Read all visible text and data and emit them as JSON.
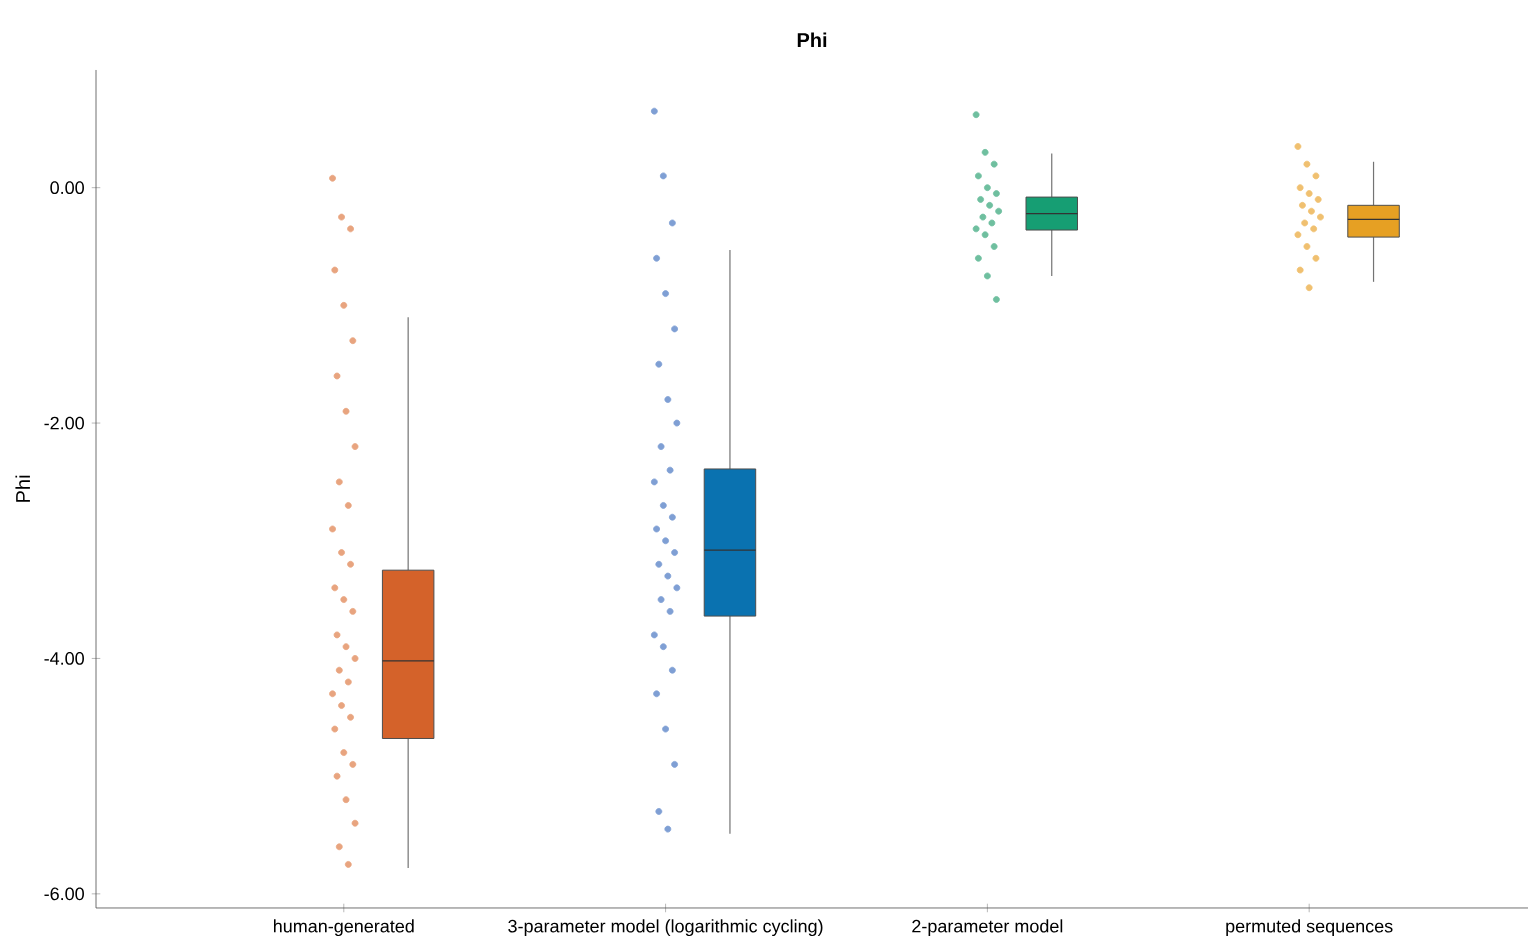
{
  "chart_data": {
    "type": "box",
    "title": "Phi",
    "ylabel": "Phi",
    "categories": [
      "human-generated",
      "3-parameter model (logarithmic cycling)",
      "2-parameter model",
      "permuted sequences"
    ],
    "colors": [
      "#d4622a",
      "#0a72b0",
      "#169e73",
      "#e6a023"
    ],
    "boxes": [
      {
        "low": -5.78,
        "q1": -4.68,
        "median": -4.02,
        "q3": -3.25,
        "high": -1.1
      },
      {
        "low": -5.49,
        "q1": -3.64,
        "median": -3.08,
        "q3": -2.39,
        "high": -0.53
      },
      {
        "low": -0.75,
        "q1": -0.36,
        "median": -0.22,
        "q3": -0.08,
        "high": 0.29
      },
      {
        "low": -0.8,
        "q1": -0.42,
        "median": -0.27,
        "q3": -0.15,
        "high": 0.22
      }
    ],
    "series": [
      {
        "type": "scatter",
        "color": "#e8a47f",
        "x": [
          "human-generated",
          "human-generated",
          "human-generated",
          "human-generated",
          "human-generated",
          "human-generated",
          "human-generated",
          "human-generated",
          "human-generated",
          "human-generated",
          "human-generated",
          "human-generated",
          "human-generated",
          "human-generated",
          "human-generated",
          "human-generated",
          "human-generated",
          "human-generated",
          "human-generated",
          "human-generated",
          "human-generated",
          "human-generated",
          "human-generated",
          "human-generated",
          "human-generated",
          "human-generated",
          "human-generated",
          "human-generated",
          "human-generated",
          "human-generated",
          "human-generated",
          "human-generated",
          "human-generated"
        ],
        "values": [
          0.08,
          -0.25,
          -0.35,
          -0.7,
          -1.0,
          -1.3,
          -1.6,
          -1.9,
          -2.2,
          -2.5,
          -2.7,
          -2.9,
          -3.1,
          -3.2,
          -3.4,
          -3.5,
          -3.6,
          -3.8,
          -3.9,
          -4.0,
          -4.1,
          -4.2,
          -4.3,
          -4.4,
          -4.5,
          -4.6,
          -4.8,
          -4.9,
          -5.0,
          -5.2,
          -5.4,
          -5.6,
          -5.75
        ]
      },
      {
        "type": "scatter",
        "color": "#7f9fd4",
        "x": [
          "3-parameter model (logarithmic cycling)",
          "3-parameter model (logarithmic cycling)",
          "3-parameter model (logarithmic cycling)",
          "3-parameter model (logarithmic cycling)",
          "3-parameter model (logarithmic cycling)",
          "3-parameter model (logarithmic cycling)",
          "3-parameter model (logarithmic cycling)",
          "3-parameter model (logarithmic cycling)",
          "3-parameter model (logarithmic cycling)",
          "3-parameter model (logarithmic cycling)",
          "3-parameter model (logarithmic cycling)",
          "3-parameter model (logarithmic cycling)",
          "3-parameter model (logarithmic cycling)",
          "3-parameter model (logarithmic cycling)",
          "3-parameter model (logarithmic cycling)",
          "3-parameter model (logarithmic cycling)",
          "3-parameter model (logarithmic cycling)",
          "3-parameter model (logarithmic cycling)",
          "3-parameter model (logarithmic cycling)",
          "3-parameter model (logarithmic cycling)",
          "3-parameter model (logarithmic cycling)",
          "3-parameter model (logarithmic cycling)",
          "3-parameter model (logarithmic cycling)",
          "3-parameter model (logarithmic cycling)",
          "3-parameter model (logarithmic cycling)",
          "3-parameter model (logarithmic cycling)",
          "3-parameter model (logarithmic cycling)",
          "3-parameter model (logarithmic cycling)",
          "3-parameter model (logarithmic cycling)",
          "3-parameter model (logarithmic cycling)"
        ],
        "values": [
          0.65,
          0.1,
          -0.3,
          -0.6,
          -0.9,
          -1.2,
          -1.5,
          -1.8,
          -2.0,
          -2.2,
          -2.4,
          -2.5,
          -2.7,
          -2.8,
          -2.9,
          -3.0,
          -3.1,
          -3.2,
          -3.3,
          -3.4,
          -3.5,
          -3.6,
          -3.8,
          -3.9,
          -4.1,
          -4.3,
          -4.6,
          -4.9,
          -5.3,
          -5.45
        ]
      },
      {
        "type": "scatter",
        "color": "#6fbf9f",
        "x": [
          "2-parameter model",
          "2-parameter model",
          "2-parameter model",
          "2-parameter model",
          "2-parameter model",
          "2-parameter model",
          "2-parameter model",
          "2-parameter model",
          "2-parameter model",
          "2-parameter model",
          "2-parameter model",
          "2-parameter model",
          "2-parameter model",
          "2-parameter model",
          "2-parameter model",
          "2-parameter model",
          "2-parameter model"
        ],
        "values": [
          0.62,
          0.3,
          0.2,
          0.1,
          0.0,
          -0.05,
          -0.1,
          -0.15,
          -0.2,
          -0.25,
          -0.3,
          -0.35,
          -0.4,
          -0.5,
          -0.6,
          -0.75,
          -0.95
        ]
      },
      {
        "type": "scatter",
        "color": "#f0c070",
        "x": [
          "permuted sequences",
          "permuted sequences",
          "permuted sequences",
          "permuted sequences",
          "permuted sequences",
          "permuted sequences",
          "permuted sequences",
          "permuted sequences",
          "permuted sequences",
          "permuted sequences",
          "permuted sequences",
          "permuted sequences",
          "permuted sequences",
          "permuted sequences",
          "permuted sequences",
          "permuted sequences"
        ],
        "values": [
          0.35,
          0.2,
          0.1,
          0.0,
          -0.05,
          -0.1,
          -0.15,
          -0.2,
          -0.25,
          -0.3,
          -0.35,
          -0.4,
          -0.5,
          -0.6,
          -0.7,
          -0.85
        ]
      }
    ],
    "ylim": [
      -6.12,
      1.0
    ],
    "yticks": [
      {
        "value": -6,
        "label": "-6.00"
      },
      {
        "value": -4,
        "label": "-4.00"
      },
      {
        "value": -2,
        "label": "-2.00"
      },
      {
        "value": 0,
        "label": "0.00"
      }
    ],
    "grid": false
  }
}
